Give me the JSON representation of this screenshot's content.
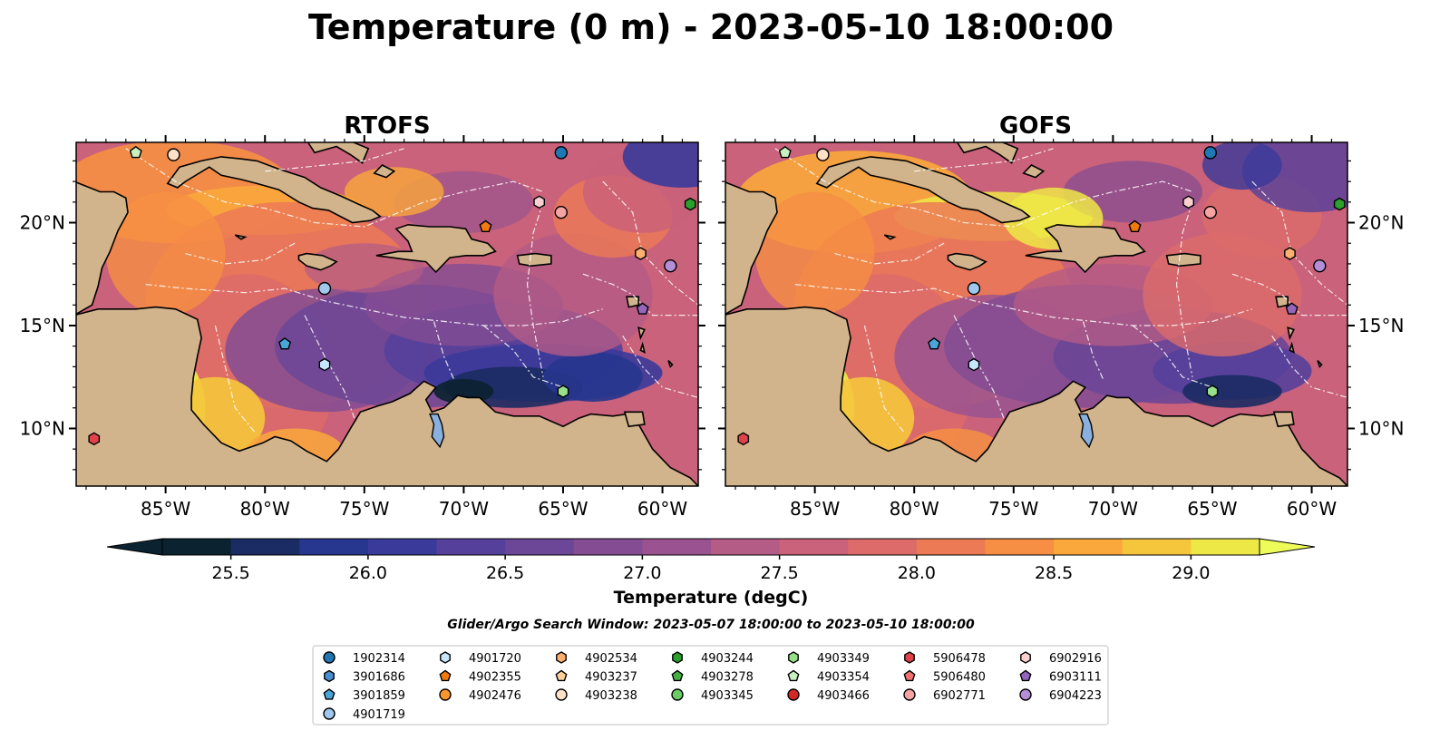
{
  "title": "Temperature (0 m) - 2023-05-10 18:00:00",
  "panels": [
    {
      "id": "rtofs",
      "title": "RTOFS"
    },
    {
      "id": "gofs",
      "title": "GOFS"
    }
  ],
  "axes": {
    "lon_ticks": [
      "85°W",
      "80°W",
      "75°W",
      "70°W",
      "65°W",
      "60°W"
    ],
    "lat_ticks": [
      "20°N",
      "15°N",
      "10°N"
    ],
    "lon_range": [
      -89.5,
      -58.2
    ],
    "lat_range": [
      7.2,
      23.9
    ]
  },
  "colorbar": {
    "label": "Temperature (degC)",
    "ticks": [
      "25.5",
      "26.0",
      "26.5",
      "27.0",
      "27.5",
      "28.0",
      "28.5",
      "29.0"
    ],
    "range": [
      25.25,
      29.25
    ],
    "extend": "both",
    "colors": [
      "#0b2230",
      "#1b2b63",
      "#27368e",
      "#3a3a9a",
      "#55409b",
      "#6c4697",
      "#834c93",
      "#9a5390",
      "#b45b86",
      "#c9627a",
      "#dc6b6a",
      "#ec7a55",
      "#f68f43",
      "#faa83b",
      "#f5c63c",
      "#eee847"
    ]
  },
  "search_window": "Glider/Argo Search Window: 2023-05-07 18:00:00 to 2023-05-10 18:00:00",
  "colors": {
    "land": "#d2b48c",
    "lake": "#8ab0e0",
    "rivers": "#9ab5d0",
    "eez": "#ffffff"
  },
  "platforms": [
    {
      "id": "1902314",
      "marker": "circle",
      "color": "#1f77b4",
      "lon": -65.1,
      "lat": 23.4
    },
    {
      "id": "3901686",
      "marker": "hexagon",
      "color": "#4a8fd0",
      "lon": null,
      "lat": null
    },
    {
      "id": "3901859",
      "marker": "pentagon",
      "color": "#4aa6d8",
      "lon": -79.0,
      "lat": 14.1
    },
    {
      "id": "4901719",
      "marker": "circle",
      "color": "#a0c8ef",
      "lon": -77.0,
      "lat": 16.8
    },
    {
      "id": "4901720",
      "marker": "hexagon",
      "color": "#c6e6fb",
      "lon": -77.0,
      "lat": 13.1
    },
    {
      "id": "4902355",
      "marker": "pentagon",
      "color": "#f07a10",
      "lon": -68.9,
      "lat": 19.8
    },
    {
      "id": "4902476",
      "marker": "circle",
      "color": "#fa962e",
      "lon": null,
      "lat": null
    },
    {
      "id": "4902534",
      "marker": "hexagon",
      "color": "#fbb070",
      "lon": -61.1,
      "lat": 18.5
    },
    {
      "id": "4903237",
      "marker": "pentagon",
      "color": "#fdd09e",
      "lon": null,
      "lat": null
    },
    {
      "id": "4903238",
      "marker": "circle",
      "color": "#fde2c7",
      "lon": -84.6,
      "lat": 23.3
    },
    {
      "id": "4903244",
      "marker": "hexagon",
      "color": "#2ca02c",
      "lon": -58.6,
      "lat": 20.9
    },
    {
      "id": "4903278",
      "marker": "pentagon",
      "color": "#44b044",
      "lon": null,
      "lat": null
    },
    {
      "id": "4903345",
      "marker": "circle",
      "color": "#6acc64",
      "lon": null,
      "lat": null
    },
    {
      "id": "4903349",
      "marker": "hexagon",
      "color": "#98df8a",
      "lon": -65.0,
      "lat": 11.8
    },
    {
      "id": "4903354",
      "marker": "pentagon",
      "color": "#c8f0c0",
      "lon": -86.5,
      "lat": 23.4
    },
    {
      "id": "4903466",
      "marker": "circle",
      "color": "#d62728",
      "lon": null,
      "lat": null
    },
    {
      "id": "5906478",
      "marker": "hexagon",
      "color": "#e0424a",
      "lon": -88.6,
      "lat": 9.5
    },
    {
      "id": "5906480",
      "marker": "pentagon",
      "color": "#f07070",
      "lon": null,
      "lat": null
    },
    {
      "id": "6902771",
      "marker": "circle",
      "color": "#f5a3a3",
      "lon": -65.1,
      "lat": 20.5
    },
    {
      "id": "6902916",
      "marker": "hexagon",
      "color": "#fbd0d0",
      "lon": -66.2,
      "lat": 21.0
    },
    {
      "id": "6903111",
      "marker": "pentagon",
      "color": "#9467bd",
      "lon": -61.0,
      "lat": 15.8
    },
    {
      "id": "6904223",
      "marker": "circle",
      "color": "#b48ed6",
      "lon": -59.6,
      "lat": 17.9
    }
  ]
}
